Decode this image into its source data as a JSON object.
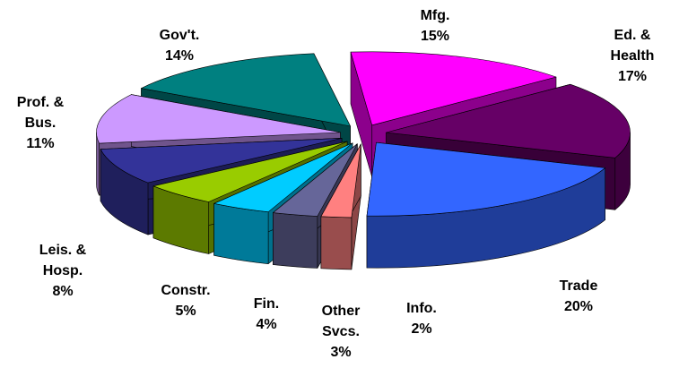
{
  "chart_data": {
    "type": "pie3d",
    "categories": [
      [
        "Mfg."
      ],
      [
        "Ed. &",
        "Health"
      ],
      [
        "Trade"
      ],
      [
        "Info."
      ],
      [
        "Other",
        "Svcs."
      ],
      [
        "Fin."
      ],
      [
        "Constr."
      ],
      [
        "Leis. &",
        "Hosp."
      ],
      [
        "Prof. &",
        "Bus."
      ],
      [
        "Gov't."
      ]
    ],
    "values": [
      15,
      17,
      20,
      2,
      3,
      4,
      5,
      8,
      11,
      14
    ],
    "value_labels": [
      "15%",
      "17%",
      "20%",
      "2%",
      "3%",
      "4%",
      "5%",
      "8%",
      "11%",
      "14%"
    ],
    "colors": [
      "#ff00ff",
      "#660066",
      "#3366ff",
      "#ff8080",
      "#666699",
      "#00ccff",
      "#99cc00",
      "#333399",
      "#cc99ff",
      "#008080"
    ]
  }
}
